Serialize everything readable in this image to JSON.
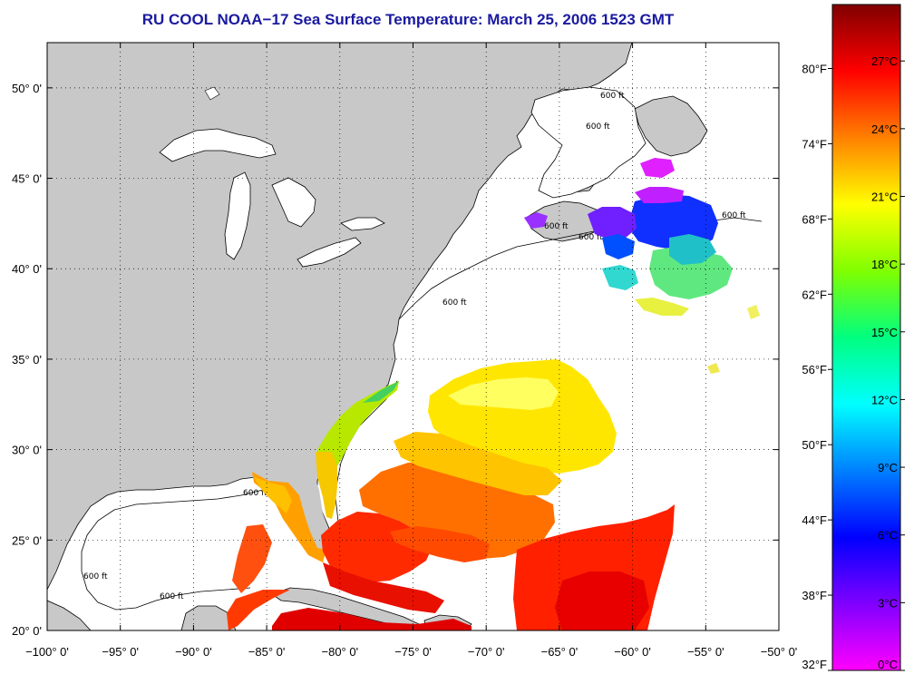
{
  "title": "RU COOL  NOAA−17  Sea Surface Temperature:  March 25, 2006 1523 GMT",
  "map": {
    "lon_range": [
      -100,
      -50
    ],
    "lat_range": [
      20,
      52.5
    ],
    "lon_ticks": [
      {
        "value": -100,
        "label": "−100° 0'"
      },
      {
        "value": -95,
        "label": "−95° 0'"
      },
      {
        "value": -90,
        "label": "−90° 0'"
      },
      {
        "value": -85,
        "label": "−85° 0'"
      },
      {
        "value": -80,
        "label": "−80° 0'"
      },
      {
        "value": -75,
        "label": "−75° 0'"
      },
      {
        "value": -70,
        "label": "−70° 0'"
      },
      {
        "value": -65,
        "label": "−65° 0'"
      },
      {
        "value": -60,
        "label": "−60° 0'"
      },
      {
        "value": -55,
        "label": "−55° 0'"
      },
      {
        "value": -50,
        "label": "−50° 0'"
      }
    ],
    "lat_ticks": [
      {
        "value": 20,
        "label": "20° 0'"
      },
      {
        "value": 25,
        "label": "25° 0'"
      },
      {
        "value": 30,
        "label": "30° 0'"
      },
      {
        "value": 35,
        "label": "35° 0'"
      },
      {
        "value": 40,
        "label": "40° 0'"
      },
      {
        "value": 45,
        "label": "45° 0'"
      },
      {
        "value": 50,
        "label": "50° 0'"
      }
    ],
    "grid": "dotted",
    "contour_label": "600 ft"
  },
  "colorbar": {
    "celsius_labels": [
      "0°C",
      "3°C",
      "6°C",
      "9°C",
      "12°C",
      "15°C",
      "18°C",
      "21°C",
      "24°C",
      "27°C"
    ],
    "fahrenheit_labels": [
      "32°F",
      "38°F",
      "44°F",
      "50°F",
      "56°F",
      "62°F",
      "68°F",
      "74°F",
      "80°F"
    ],
    "colors": [
      "#ff00ff",
      "#8000ff",
      "#0000ff",
      "#0080ff",
      "#00ffff",
      "#00ff80",
      "#80ff00",
      "#ffff00",
      "#ff8000",
      "#ff0000",
      "#800000"
    ],
    "c_min": 0,
    "c_max": 29.5
  },
  "colors": {
    "land": "#c8c8c8",
    "ocean": "#ffffff",
    "title": "#1a1aa0"
  }
}
